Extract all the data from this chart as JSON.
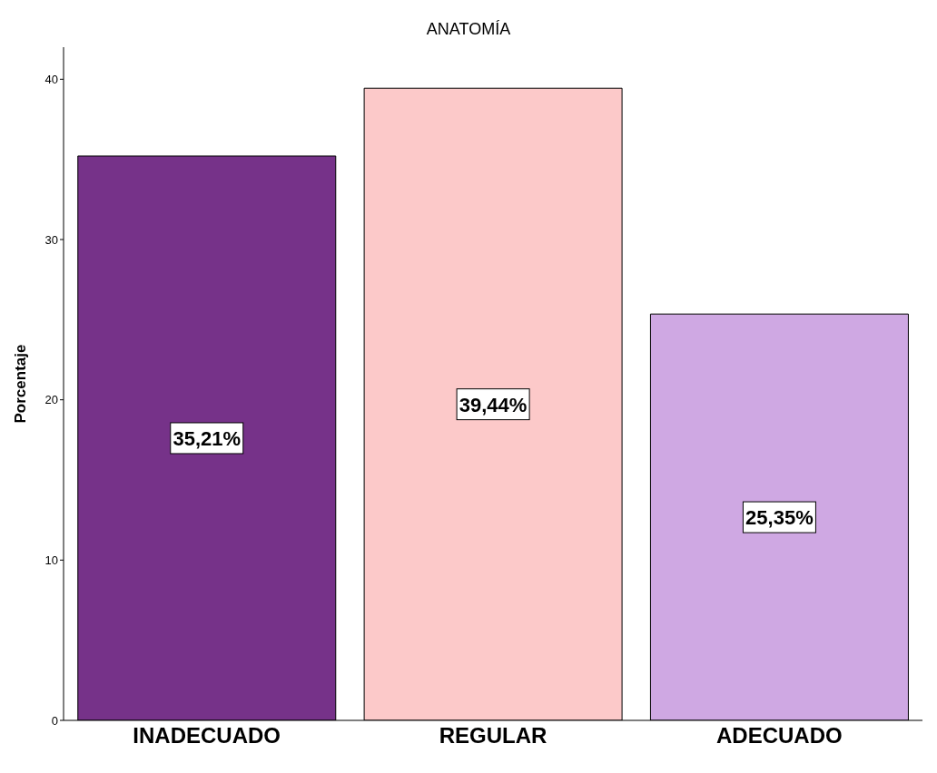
{
  "chart_data": {
    "type": "bar",
    "title": "ANATOMÍA",
    "ylabel": "Porcentaje",
    "categories": [
      "INADECUADO",
      "REGULAR",
      "ADECUADO"
    ],
    "values": [
      35.21,
      39.44,
      25.35
    ],
    "colors": [
      "#763289",
      "#fcc9c9",
      "#cfa8e3"
    ],
    "value_labels": [
      "35,21%",
      "39,44%",
      "25,35%"
    ],
    "ylim": [
      0,
      42
    ],
    "yticks": [
      0,
      10,
      20,
      30,
      40
    ],
    "grid": false
  }
}
